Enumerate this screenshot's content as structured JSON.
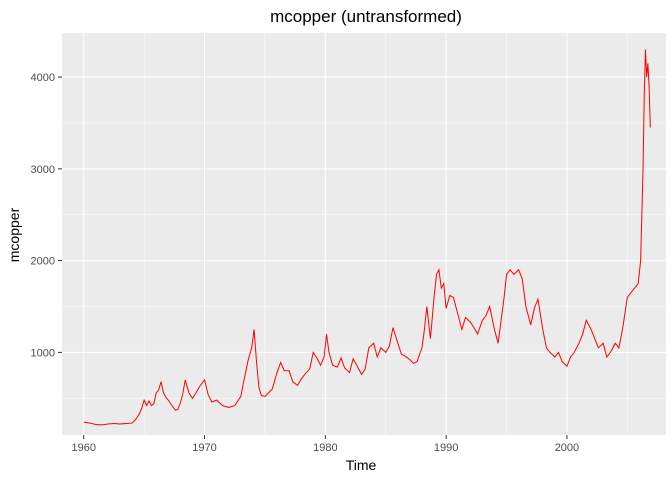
{
  "chart_data": {
    "type": "line",
    "title": "mcopper (untransformed)",
    "xlabel": "Time",
    "ylabel": "mcopper",
    "xlim": [
      1958.2,
      2008.2
    ],
    "ylim": [
      100,
      4480
    ],
    "x_ticks": [
      1960,
      1970,
      1980,
      1990,
      2000
    ],
    "x_tick_labels": [
      "1960",
      "1970",
      "1980",
      "1990",
      "2000"
    ],
    "y_ticks": [
      1000,
      2000,
      3000,
      4000
    ],
    "y_tick_labels": [
      "1000",
      "2000",
      "3000",
      "4000"
    ],
    "grid": true,
    "panel_background": "#ebebeb",
    "grid_color": "#ffffff",
    "series": [
      {
        "color": "#ff0000",
        "x": [
          1960.0,
          1960.5,
          1961.0,
          1961.5,
          1962.0,
          1962.5,
          1963.0,
          1963.5,
          1964.0,
          1964.3,
          1964.6,
          1964.8,
          1965.0,
          1965.2,
          1965.4,
          1965.6,
          1965.8,
          1966.0,
          1966.2,
          1966.4,
          1966.6,
          1966.8,
          1967.0,
          1967.3,
          1967.6,
          1967.8,
          1968.0,
          1968.2,
          1968.4,
          1968.7,
          1969.0,
          1969.3,
          1969.6,
          1970.0,
          1970.3,
          1970.6,
          1971.0,
          1971.5,
          1972.0,
          1972.5,
          1973.0,
          1973.3,
          1973.6,
          1973.9,
          1974.1,
          1974.3,
          1974.5,
          1974.7,
          1975.0,
          1975.3,
          1975.6,
          1976.0,
          1976.3,
          1976.6,
          1977.0,
          1977.3,
          1977.7,
          1978.0,
          1978.3,
          1978.7,
          1979.0,
          1979.3,
          1979.6,
          1979.9,
          1980.1,
          1980.3,
          1980.6,
          1981.0,
          1981.3,
          1981.6,
          1982.0,
          1982.3,
          1982.6,
          1983.0,
          1983.3,
          1983.6,
          1984.0,
          1984.3,
          1984.6,
          1985.0,
          1985.3,
          1985.6,
          1986.0,
          1986.3,
          1986.6,
          1987.0,
          1987.3,
          1987.6,
          1987.8,
          1988.0,
          1988.2,
          1988.4,
          1988.7,
          1989.0,
          1989.2,
          1989.4,
          1989.6,
          1989.8,
          1990.0,
          1990.3,
          1990.6,
          1991.0,
          1991.3,
          1991.6,
          1992.0,
          1992.3,
          1992.6,
          1993.0,
          1993.3,
          1993.6,
          1994.0,
          1994.3,
          1994.6,
          1994.8,
          1995.0,
          1995.3,
          1995.6,
          1996.0,
          1996.3,
          1996.6,
          1997.0,
          1997.3,
          1997.6,
          1998.0,
          1998.3,
          1998.6,
          1999.0,
          1999.3,
          1999.6,
          2000.0,
          2000.3,
          2000.6,
          2001.0,
          2001.3,
          2001.6,
          2002.0,
          2002.3,
          2002.6,
          2003.0,
          2003.3,
          2003.6,
          2004.0,
          2004.3,
          2004.6,
          2005.0,
          2005.3,
          2005.6,
          2005.9,
          2006.1,
          2006.2,
          2006.3,
          2006.4,
          2006.5,
          2006.6,
          2006.7,
          2006.8,
          2006.9
        ],
        "values": [
          240,
          230,
          215,
          210,
          220,
          225,
          220,
          225,
          230,
          270,
          330,
          390,
          480,
          420,
          470,
          420,
          440,
          560,
          590,
          680,
          560,
          510,
          480,
          420,
          370,
          380,
          450,
          550,
          700,
          560,
          500,
          560,
          630,
          700,
          540,
          460,
          480,
          420,
          400,
          420,
          520,
          720,
          910,
          1050,
          1250,
          900,
          620,
          530,
          520,
          560,
          600,
          780,
          890,
          800,
          800,
          680,
          640,
          710,
          760,
          820,
          1000,
          940,
          860,
          950,
          1200,
          1000,
          860,
          840,
          940,
          830,
          780,
          930,
          860,
          760,
          820,
          1050,
          1100,
          950,
          1050,
          1000,
          1070,
          1270,
          1100,
          980,
          960,
          920,
          880,
          900,
          980,
          1050,
          1250,
          1500,
          1150,
          1600,
          1850,
          1900,
          1700,
          1750,
          1480,
          1620,
          1600,
          1400,
          1250,
          1380,
          1330,
          1270,
          1200,
          1350,
          1400,
          1500,
          1250,
          1100,
          1400,
          1600,
          1850,
          1900,
          1850,
          1900,
          1800,
          1500,
          1300,
          1480,
          1580,
          1250,
          1050,
          1000,
          950,
          1000,
          900,
          850,
          950,
          1000,
          1100,
          1200,
          1350,
          1250,
          1150,
          1050,
          1100,
          950,
          1000,
          1100,
          1050,
          1250,
          1600,
          1650,
          1700,
          1750,
          2000,
          2500,
          3000,
          3800,
          4300,
          4000,
          4150,
          3900,
          3450
        ]
      }
    ]
  }
}
